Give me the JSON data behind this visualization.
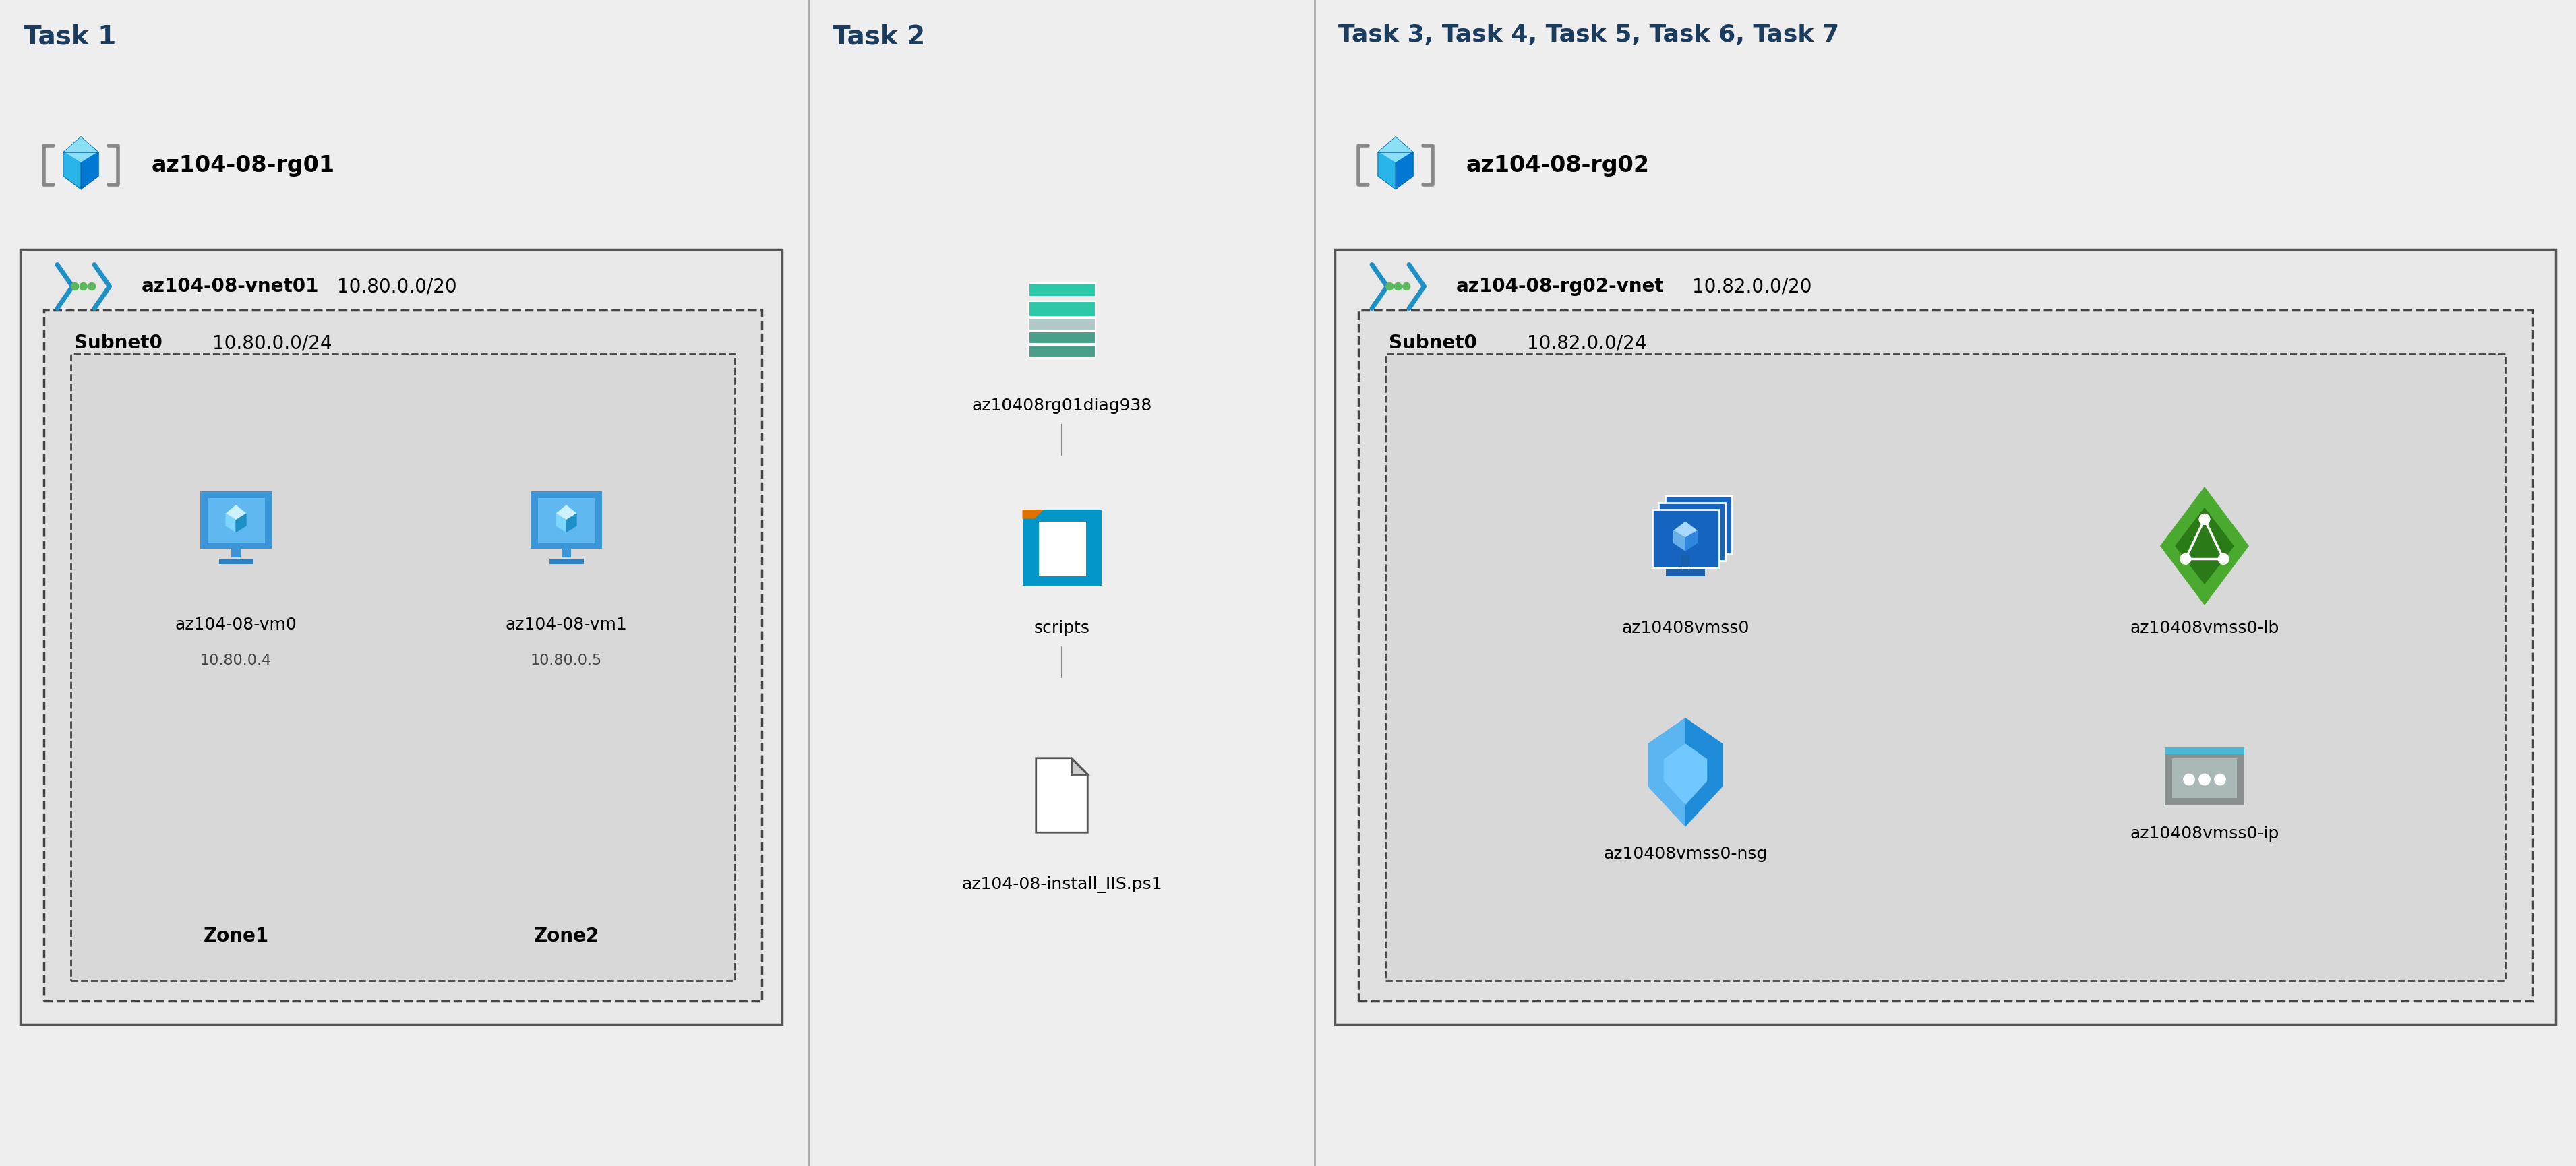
{
  "bg_color": "#efefef",
  "panel1_bg": "#efefef",
  "panel2_bg": "#efefef",
  "panel3_bg": "#efefef",
  "task1_label": "Task 1",
  "task2_label": "Task 2",
  "task3_label": "Task 3, Task 4, Task 5, Task 6, Task 7",
  "rg01_label": "az104-08-rg01",
  "rg02_label": "az104-08-rg02",
  "vnet01_label": "az104-08-vnet01",
  "vnet01_cidr": "10.80.0.0/20",
  "vnet02_label": "az104-08-rg02-vnet",
  "vnet02_cidr": "10.82.0.0/20",
  "subnet0_label": "Subnet0",
  "subnet0_cidr": "10.80.0.0/24",
  "subnet0_cidr2": "10.82.0.0/24",
  "vm0_label": "az104-08-vm0",
  "vm0_ip": "10.80.0.4",
  "vm0_zone": "Zone1",
  "vm1_label": "az104-08-vm1",
  "vm1_ip": "10.80.0.5",
  "vm1_zone": "Zone2",
  "diag_label": "az10408rg01diag938",
  "scripts_label": "scripts",
  "ps1_label": "az104-08-install_IIS.ps1",
  "vmss0_label": "az10408vmss0",
  "vmss0lb_label": "az10408vmss0-lb",
  "vmss0nsg_label": "az10408vmss0-nsg",
  "vmss0ip_label": "az10408vmss0-ip",
  "task_color": "#1a3c5e",
  "div_color": "#aaaaaa",
  "vnet_border": "#444444",
  "dashed_color": "#333333",
  "task_fontsize": 28,
  "title_fontsize": 24,
  "label_fontsize": 20,
  "small_fontsize": 18,
  "ip_fontsize": 16
}
